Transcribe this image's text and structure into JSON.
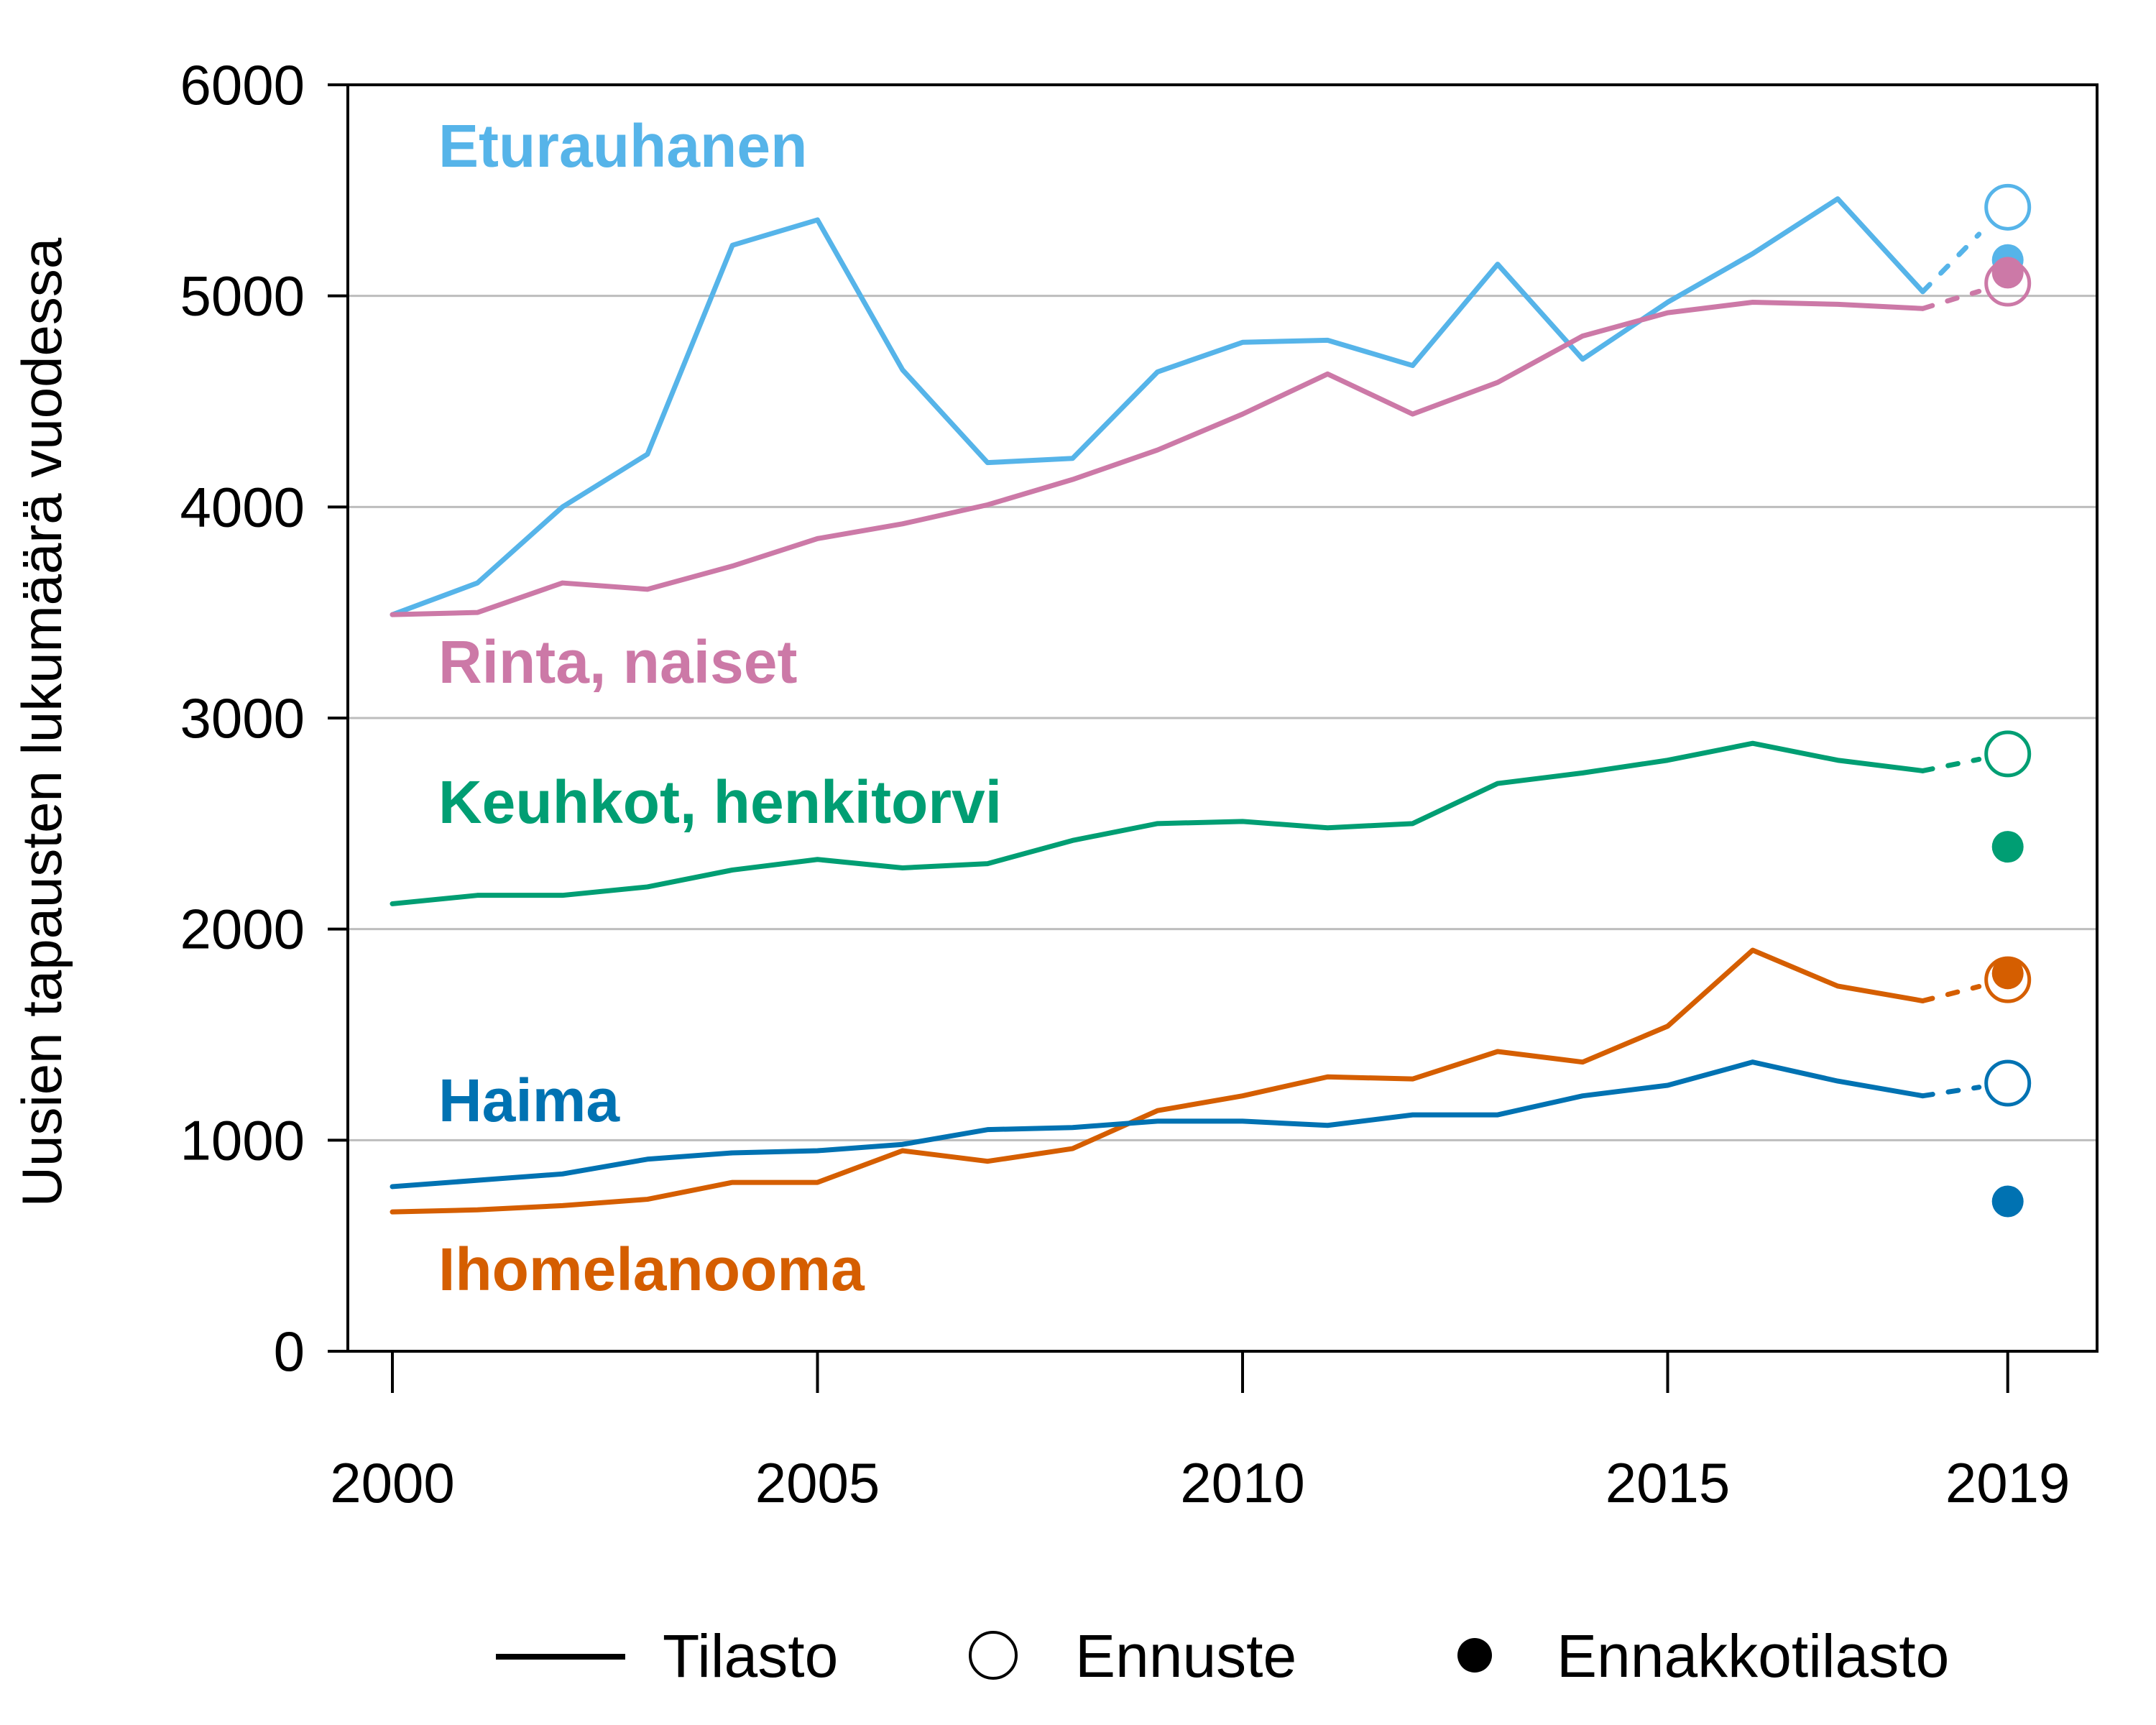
{
  "chart_data": {
    "type": "line",
    "ylabel": "Uusien tapausten lukumäärä vuodessa",
    "xlabel": "",
    "xlim": [
      2000,
      2020
    ],
    "ylim": [
      0,
      6000
    ],
    "x_ticks": [
      2000,
      2005,
      2010,
      2015,
      2019
    ],
    "y_ticks": [
      0,
      1000,
      2000,
      3000,
      4000,
      5000,
      6000
    ],
    "grid": true,
    "legend": {
      "placement": "bottom",
      "entries": [
        {
          "name": "Tilasto",
          "marker": "line"
        },
        {
          "name": "Ennuste",
          "marker": "open-circle"
        },
        {
          "name": "Ennakkotilasto",
          "marker": "filled-circle"
        }
      ]
    },
    "x": [
      2000,
      2001,
      2002,
      2003,
      2004,
      2005,
      2006,
      2007,
      2008,
      2009,
      2010,
      2011,
      2012,
      2013,
      2014,
      2015,
      2016,
      2017,
      2018
    ],
    "series": [
      {
        "name": "Eturauhanen",
        "color": "#56B4E9",
        "values": [
          3490,
          3640,
          4000,
          4250,
          5240,
          5360,
          4650,
          4210,
          4230,
          4640,
          4780,
          4790,
          4670,
          5150,
          4700,
          4970,
          5200,
          5460,
          5020
        ],
        "forecast_2019": 5420,
        "preliminary_2019": 5170
      },
      {
        "name": "Rinta, naiset",
        "color": "#CC79A7",
        "values": [
          3490,
          3500,
          3640,
          3610,
          3720,
          3850,
          3920,
          4010,
          4130,
          4270,
          4440,
          4630,
          4440,
          4590,
          4810,
          4920,
          4970,
          4960,
          4940
        ],
        "forecast_2019": 5060,
        "preliminary_2019": 5110
      },
      {
        "name": "Keuhkot, henkitorvi",
        "color": "#009E73",
        "values": [
          2120,
          2160,
          2160,
          2200,
          2280,
          2330,
          2290,
          2310,
          2420,
          2500,
          2510,
          2480,
          2500,
          2690,
          2740,
          2800,
          2880,
          2800,
          2750
        ],
        "forecast_2019": 2830,
        "preliminary_2019": 2390
      },
      {
        "name": "Ihomelanooma",
        "color": "#D55E00",
        "values": [
          660,
          670,
          690,
          720,
          800,
          800,
          950,
          900,
          960,
          1140,
          1210,
          1300,
          1290,
          1420,
          1370,
          1540,
          1900,
          1730,
          1660
        ],
        "forecast_2019": 1760,
        "preliminary_2019": 1790
      },
      {
        "name": "Haima",
        "color": "#0072B2",
        "values": [
          780,
          810,
          840,
          910,
          940,
          950,
          980,
          1050,
          1060,
          1090,
          1090,
          1070,
          1120,
          1120,
          1210,
          1260,
          1370,
          1280,
          1210
        ],
        "forecast_2019": 1270,
        "preliminary_2019": 710
      }
    ]
  }
}
